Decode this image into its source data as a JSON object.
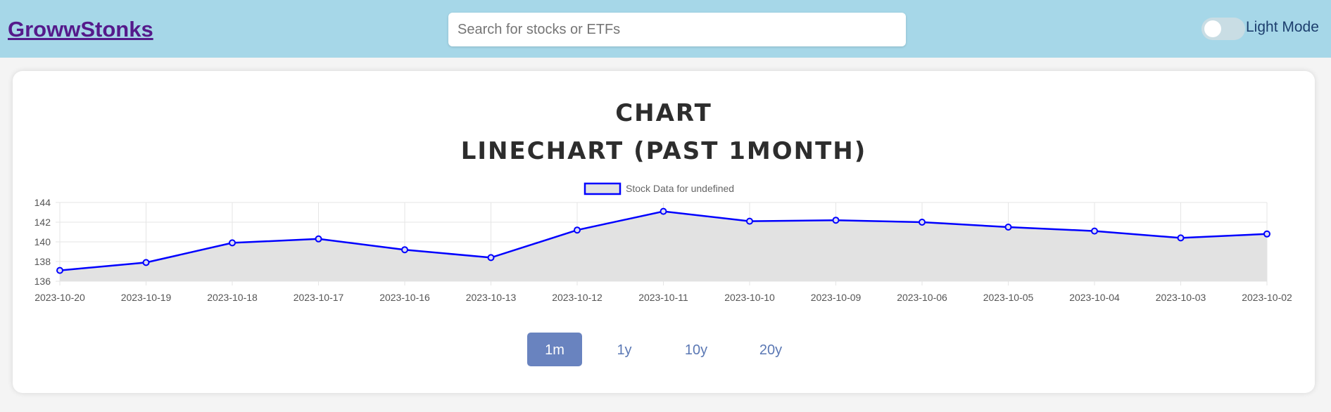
{
  "header": {
    "brand": "GrowwStonks",
    "search_placeholder": "Search for stocks or ETFs",
    "search_value": "",
    "mode_label": "Light Mode",
    "mode_on": false
  },
  "chart_card": {
    "title": "CHART",
    "subtitle": "LINECHART (PAST 1MONTH)"
  },
  "chart_data": {
    "type": "line",
    "title": "",
    "xlabel": "",
    "ylabel": "",
    "legend": "top-center",
    "grid": true,
    "fill": true,
    "ylim": [
      136,
      144
    ],
    "yticks": [
      136,
      138,
      140,
      142,
      144
    ],
    "categories": [
      "2023-10-20",
      "2023-10-19",
      "2023-10-18",
      "2023-10-17",
      "2023-10-16",
      "2023-10-13",
      "2023-10-12",
      "2023-10-11",
      "2023-10-10",
      "2023-10-09",
      "2023-10-06",
      "2023-10-05",
      "2023-10-04",
      "2023-10-03",
      "2023-10-02"
    ],
    "series": [
      {
        "name": "Stock Data for undefined",
        "color": "#0000ff",
        "fill_color": "#e2e2e2",
        "values": [
          137.1,
          137.9,
          139.9,
          140.3,
          139.2,
          138.4,
          141.2,
          143.1,
          142.1,
          142.2,
          142.0,
          141.5,
          141.1,
          140.4,
          140.8
        ]
      }
    ]
  },
  "ranges": {
    "buttons": [
      "1m",
      "1y",
      "10y",
      "20y"
    ],
    "active": "1m"
  },
  "colors": {
    "header_bg": "#a6d7e8",
    "brand": "#551a8b",
    "active_button": "#6983bf",
    "button_text": "#5b78b4"
  }
}
